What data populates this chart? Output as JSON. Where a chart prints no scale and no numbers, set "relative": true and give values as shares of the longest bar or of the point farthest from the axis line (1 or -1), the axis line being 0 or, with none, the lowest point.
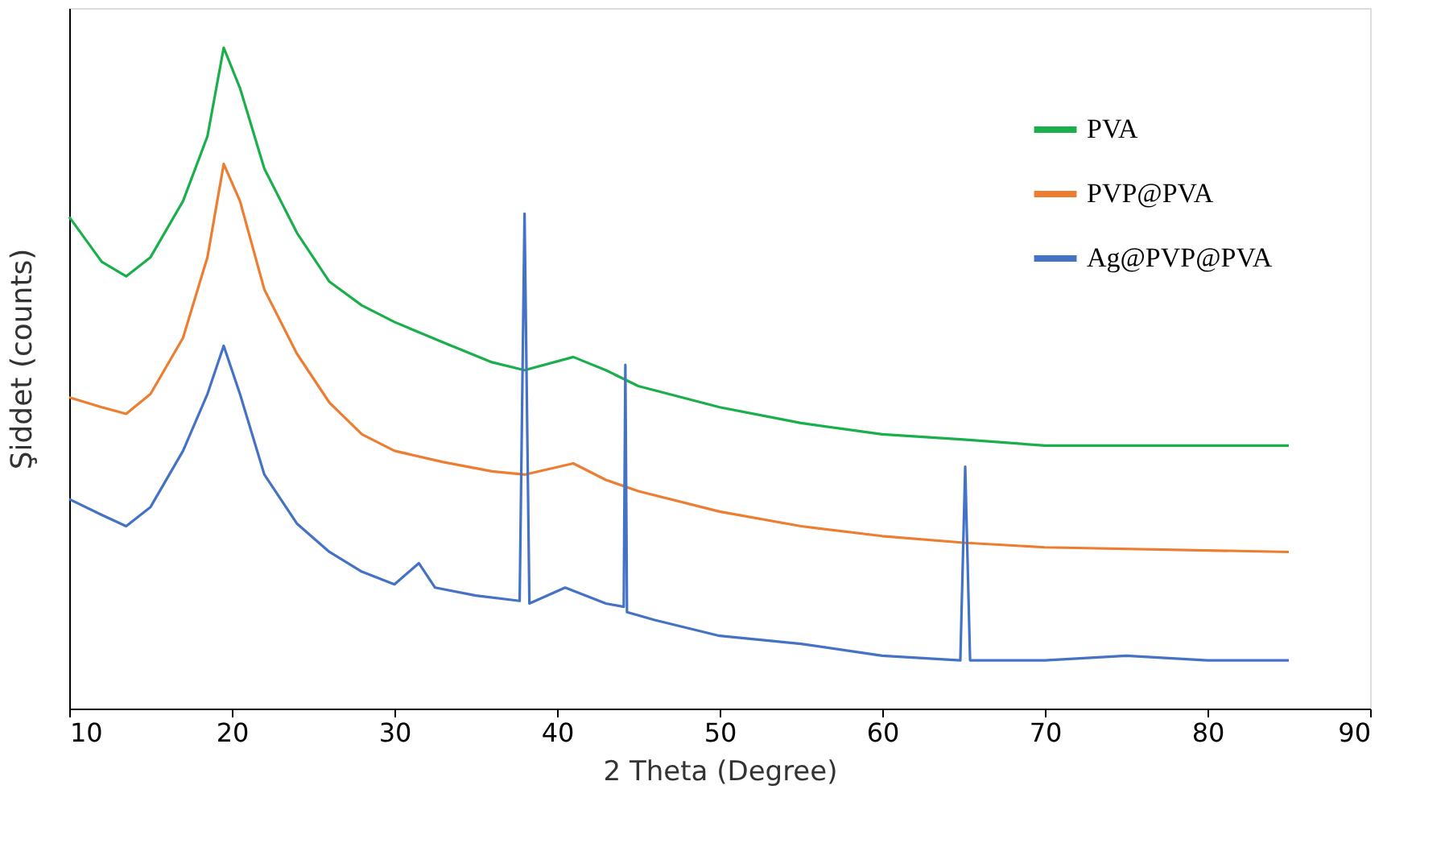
{
  "chart_data": {
    "type": "line",
    "relative": true,
    "xlabel": "2 Theta (Degree)",
    "ylabel": "Şiddet (counts)",
    "xlim": [
      10,
      90
    ],
    "xticks": [
      10,
      20,
      30,
      40,
      50,
      60,
      70,
      80,
      90
    ],
    "grid": false,
    "legend": "top right",
    "marker": "none",
    "line_style": "solid",
    "series": [
      {
        "name": "PVA",
        "color": "#1aaf4b",
        "x": [
          10,
          12,
          13.5,
          15,
          17,
          18.5,
          19.5,
          20.5,
          22,
          24,
          26,
          28,
          30,
          33,
          36,
          38,
          41,
          43,
          45,
          50,
          55,
          60,
          65,
          70,
          75,
          80,
          85
        ],
        "values": [
          0.744,
          0.676,
          0.654,
          0.683,
          0.768,
          0.866,
          1,
          0.939,
          0.817,
          0.72,
          0.646,
          0.61,
          0.585,
          0.554,
          0.524,
          0.512,
          0.532,
          0.512,
          0.488,
          0.456,
          0.432,
          0.415,
          0.407,
          0.398,
          0.398,
          0.398,
          0.398
        ]
      },
      {
        "name": "PVP@PVA",
        "color": "#ed7d31",
        "x": [
          10,
          12,
          13.5,
          15,
          17,
          18.5,
          19.5,
          20.5,
          22,
          24,
          26,
          28,
          30,
          33,
          36,
          38,
          41,
          43,
          45,
          50,
          55,
          60,
          65,
          70,
          85
        ],
        "values": [
          0.471,
          0.456,
          0.446,
          0.476,
          0.561,
          0.683,
          0.824,
          0.768,
          0.634,
          0.537,
          0.463,
          0.415,
          0.39,
          0.373,
          0.359,
          0.354,
          0.371,
          0.346,
          0.329,
          0.298,
          0.276,
          0.261,
          0.251,
          0.244,
          0.237
        ]
      },
      {
        "name": "Ag@PVP@PVA",
        "color": "#4472c4",
        "x": [
          10,
          12,
          13.5,
          15,
          17,
          18.5,
          19.5,
          20.5,
          22,
          24,
          26,
          28,
          30,
          31.5,
          32.5,
          35,
          37.7,
          38,
          38.3,
          40.5,
          43,
          44.1,
          44.2,
          44.3,
          46,
          50,
          55,
          60,
          64.8,
          65.1,
          65.4,
          70,
          75,
          80,
          85
        ],
        "values": [
          0.317,
          0.293,
          0.276,
          0.305,
          0.39,
          0.476,
          0.549,
          0.476,
          0.354,
          0.28,
          0.237,
          0.207,
          0.188,
          0.22,
          0.183,
          0.171,
          0.163,
          0.749,
          0.159,
          0.183,
          0.159,
          0.154,
          0.52,
          0.146,
          0.134,
          0.11,
          0.098,
          0.08,
          0.073,
          0.366,
          0.073,
          0.073,
          0.08,
          0.073,
          0.073
        ]
      }
    ]
  }
}
